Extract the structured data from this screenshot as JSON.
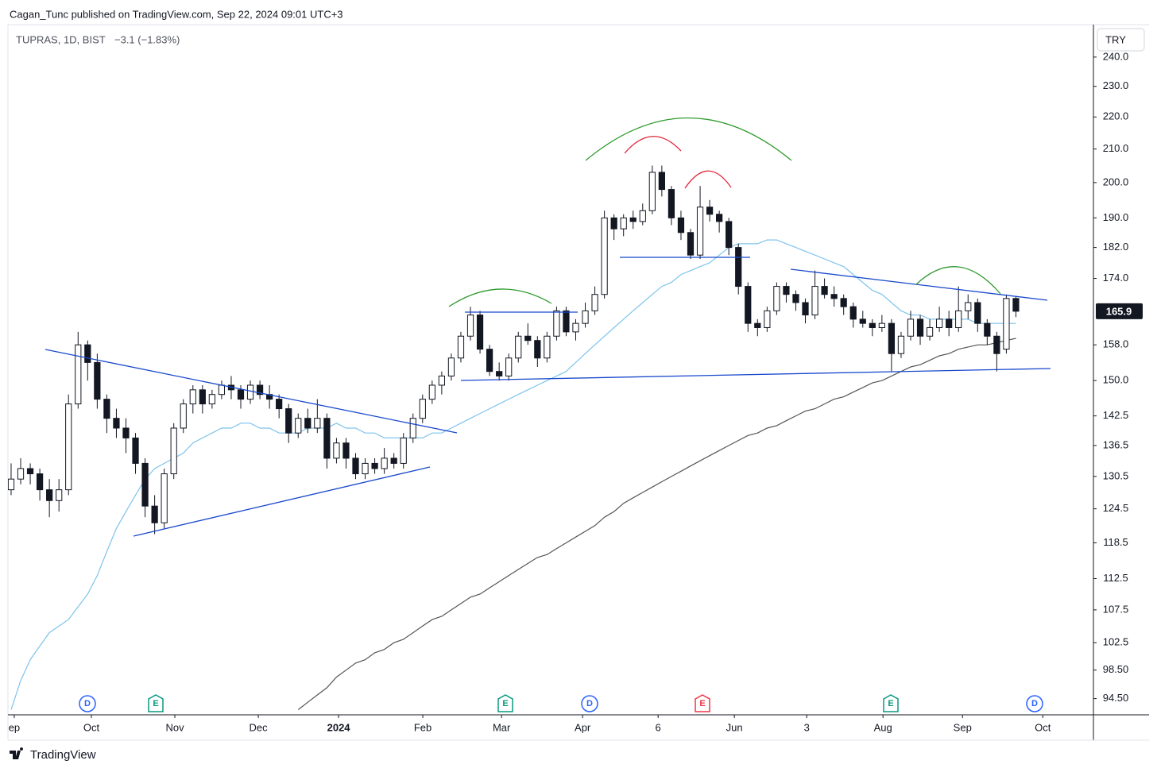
{
  "chart_data": {
    "type": "candlestick",
    "header": "Cagan_Tunc published on TradingView.com, Sep 22, 2024 09:01 UTC+3",
    "symbol": "TUPRAS, 1D, BIST",
    "change": "−3.1 (−1.83%)",
    "currency": "TRY",
    "footer": "TradingView",
    "log_scale": true,
    "last_price": 165.9,
    "ylim": [
      92.3,
      251.3
    ],
    "yticks": [
      {
        "value": 240,
        "label": "240.0"
      },
      {
        "value": 230,
        "label": "230.0"
      },
      {
        "value": 220,
        "label": "220.0"
      },
      {
        "value": 210,
        "label": "210.0"
      },
      {
        "value": 200,
        "label": "200.0"
      },
      {
        "value": 190,
        "label": "190.0"
      },
      {
        "value": 182,
        "label": "182.0"
      },
      {
        "value": 174,
        "label": "174.0"
      },
      {
        "value": 158,
        "label": "158.0"
      },
      {
        "value": 150,
        "label": "150.0"
      },
      142.5,
      136.5,
      130.5,
      124.5,
      118.5,
      112.5,
      107.5,
      102.5,
      {
        "value": 98.5,
        "label": "98.50"
      },
      {
        "value": 94.5,
        "label": "94.50"
      }
    ],
    "xlim": [
      -0.33,
      113.1
    ],
    "xticks": [
      {
        "value": 0.33,
        "label": "ep"
      },
      {
        "value": 8.39,
        "label": "Oct"
      },
      {
        "value": 17.11,
        "label": "Nov"
      },
      {
        "value": 25.83,
        "label": "Dec"
      },
      {
        "value": 34.22,
        "label": "2024"
      },
      {
        "value": 43.02,
        "label": "Feb"
      },
      {
        "value": 51.25,
        "label": "Mar"
      },
      {
        "value": 59.72,
        "label": "Apr"
      },
      {
        "value": 67.61,
        "label": "6"
      },
      {
        "value": 75.58,
        "label": "Jun"
      },
      {
        "value": 83.14,
        "label": "3"
      },
      {
        "value": 91.11,
        "label": "Aug"
      },
      {
        "value": 99.42,
        "label": "Sep"
      },
      {
        "value": 107.81,
        "label": "Oct"
      }
    ],
    "events": [
      {
        "label": "D",
        "color": "#2962ff"
      },
      {
        "label": "E",
        "color": "#089981"
      },
      {
        "label": "E",
        "color": "#089981"
      },
      {
        "label": "D",
        "color": "#2962ff"
      },
      {
        "label": "E",
        "color": "#f23645"
      },
      {
        "label": "E",
        "color": "#089981"
      },
      {
        "label": "D",
        "color": "#2962ff"
      }
    ],
    "ohlc": [
      [
        128,
        133,
        127,
        130
      ],
      [
        130,
        134,
        129,
        132
      ],
      [
        132,
        133,
        129,
        131
      ],
      [
        131,
        132,
        126,
        128
      ],
      [
        128,
        130,
        123,
        126
      ],
      [
        126,
        130,
        124,
        128
      ],
      [
        128,
        147,
        127,
        145
      ],
      [
        145,
        161,
        144,
        158
      ],
      [
        158,
        159,
        150,
        154
      ],
      [
        154,
        156,
        144,
        146
      ],
      [
        146,
        147,
        139,
        142
      ],
      [
        142,
        144,
        138,
        140
      ],
      [
        140,
        142,
        135,
        138
      ],
      [
        138,
        139,
        131,
        133
      ],
      [
        133,
        134,
        123,
        125
      ],
      [
        125,
        127,
        120,
        122
      ],
      [
        122,
        132,
        121,
        131
      ],
      [
        131,
        141,
        130,
        140
      ],
      [
        140,
        146,
        139,
        145
      ],
      [
        145,
        149,
        143,
        148
      ],
      [
        148,
        149,
        143,
        145
      ],
      [
        145,
        148,
        144,
        147
      ],
      [
        147,
        150,
        146,
        149
      ],
      [
        149,
        151,
        146,
        148
      ],
      [
        148,
        149,
        144,
        146
      ],
      [
        146,
        150,
        145,
        149
      ],
      [
        149,
        150,
        146,
        147
      ],
      [
        147,
        149,
        144,
        146
      ],
      [
        146,
        147,
        142,
        144
      ],
      [
        144,
        145,
        137,
        139
      ],
      [
        139,
        143,
        138,
        142
      ],
      [
        142,
        144,
        139,
        140
      ],
      [
        140,
        146,
        139,
        142
      ],
      [
        142,
        143,
        132,
        134
      ],
      [
        134,
        138,
        133,
        137
      ],
      [
        137,
        138,
        132,
        134
      ],
      [
        134,
        135,
        130,
        131
      ],
      [
        131,
        134,
        130,
        133
      ],
      [
        133,
        134,
        131,
        132
      ],
      [
        132,
        136,
        131,
        134
      ],
      [
        134,
        135,
        132,
        133
      ],
      [
        133,
        139,
        132,
        138
      ],
      [
        138,
        143,
        137,
        142
      ],
      [
        142,
        147,
        141,
        146
      ],
      [
        146,
        150,
        145,
        149
      ],
      [
        149,
        152,
        147,
        151
      ],
      [
        151,
        156,
        150,
        155
      ],
      [
        155,
        161,
        154,
        160
      ],
      [
        160,
        167,
        159,
        165
      ],
      [
        165,
        166,
        156,
        157
      ],
      [
        157,
        158,
        151,
        152
      ],
      [
        152,
        154,
        150,
        151
      ],
      [
        151,
        156,
        150,
        155
      ],
      [
        155,
        161,
        154,
        160
      ],
      [
        160,
        163,
        158,
        159
      ],
      [
        159,
        160,
        153,
        155
      ],
      [
        155,
        161,
        154,
        160
      ],
      [
        160,
        167,
        159,
        166
      ],
      [
        166,
        167,
        160,
        161
      ],
      [
        161,
        164,
        159,
        163
      ],
      [
        163,
        168,
        162,
        166
      ],
      [
        166,
        172,
        165,
        170
      ],
      [
        170,
        192,
        169,
        190
      ],
      [
        190,
        191,
        184,
        187
      ],
      [
        187,
        191,
        185,
        190
      ],
      [
        190,
        192,
        187,
        189
      ],
      [
        189,
        194,
        188,
        192
      ],
      [
        192,
        205,
        191,
        203
      ],
      [
        203,
        205,
        196,
        198
      ],
      [
        198,
        199,
        188,
        190
      ],
      [
        190,
        192,
        184,
        186
      ],
      [
        186,
        187,
        179,
        180
      ],
      [
        180,
        199,
        179,
        193
      ],
      [
        193,
        195,
        189,
        191
      ],
      [
        191,
        192,
        186,
        189
      ],
      [
        189,
        190,
        180,
        182
      ],
      [
        182,
        183,
        170,
        172
      ],
      [
        172,
        173,
        161,
        163
      ],
      [
        163,
        164,
        160,
        162
      ],
      [
        162,
        167,
        161,
        166
      ],
      [
        166,
        173,
        165,
        172
      ],
      [
        172,
        173,
        168,
        170
      ],
      [
        170,
        171,
        166,
        168
      ],
      [
        168,
        169,
        163,
        165
      ],
      [
        165,
        176,
        164,
        172
      ],
      [
        172,
        174,
        169,
        170
      ],
      [
        170,
        172,
        167,
        169
      ],
      [
        169,
        170,
        165,
        167
      ],
      [
        167,
        168,
        162,
        164
      ],
      [
        164,
        166,
        162,
        163
      ],
      [
        163,
        164,
        160,
        162
      ],
      [
        162,
        165,
        161,
        163
      ],
      [
        163,
        164,
        152,
        156
      ],
      [
        156,
        161,
        155,
        160
      ],
      [
        160,
        166,
        159,
        164
      ],
      [
        164,
        165,
        158,
        160
      ],
      [
        160,
        164,
        159,
        162
      ],
      [
        162,
        167,
        161,
        164
      ],
      [
        164,
        166,
        160,
        162
      ],
      [
        162,
        172,
        161,
        166
      ],
      [
        166,
        170,
        164,
        168
      ],
      [
        168,
        169,
        161,
        163
      ],
      [
        163,
        164,
        158,
        160
      ],
      [
        160,
        161,
        152,
        156
      ],
      [
        157,
        170,
        156,
        169
      ],
      [
        169,
        169.5,
        164.5,
        165.9
      ]
    ],
    "up_color": "#ffffff",
    "down_color": "#131722",
    "outline_color": "#131722",
    "series": [
      {
        "color": "#7ec3ec",
        "values": [
          93,
          97,
          100,
          102,
          104,
          105,
          106,
          108,
          110,
          113,
          117,
          121,
          124,
          127,
          130,
          132,
          133,
          134,
          135,
          137,
          138,
          139,
          140,
          140,
          141,
          141,
          140,
          140,
          139,
          139,
          139,
          140,
          140,
          140,
          141,
          140,
          140,
          139,
          139,
          138,
          138,
          138,
          138,
          138,
          139,
          139,
          140,
          141,
          142,
          143,
          144,
          145,
          146,
          147,
          148,
          149,
          150,
          151,
          152,
          154,
          156,
          158,
          160,
          162,
          164,
          166,
          168,
          170,
          172,
          173,
          175,
          176,
          177,
          178,
          180,
          182,
          183,
          183,
          183,
          184,
          184,
          183,
          182,
          181,
          180,
          179,
          178,
          177,
          175,
          173,
          171,
          170,
          168,
          166,
          165,
          165,
          164,
          164,
          164,
          164,
          164,
          163,
          163,
          163,
          163,
          163
        ]
      },
      {
        "color": "#555555",
        "values": [
          null,
          null,
          null,
          null,
          null,
          null,
          null,
          null,
          null,
          null,
          null,
          null,
          null,
          null,
          null,
          null,
          null,
          null,
          null,
          null,
          null,
          null,
          null,
          null,
          null,
          null,
          null,
          null,
          null,
          null,
          93,
          94,
          95,
          96,
          97.5,
          98.5,
          99.5,
          100,
          101,
          101.5,
          102.5,
          103,
          104,
          105,
          106,
          106.5,
          107.5,
          108.5,
          109.5,
          110,
          111,
          112,
          113,
          114,
          115,
          116,
          116.5,
          117.5,
          118.5,
          119.5,
          120.5,
          121.5,
          123,
          124,
          125.5,
          126.5,
          127.5,
          128.5,
          129.5,
          130.5,
          131.5,
          132.5,
          133.5,
          134.5,
          135.5,
          136.5,
          137.5,
          138.5,
          139,
          140,
          140.5,
          141.5,
          142.5,
          143.5,
          144,
          145,
          146,
          146.5,
          147.5,
          148.5,
          149.5,
          150,
          151,
          152,
          153,
          153.5,
          154.5,
          155.5,
          156,
          157,
          157.5,
          158,
          158,
          158.5,
          159,
          159.5
        ]
      }
    ]
  }
}
